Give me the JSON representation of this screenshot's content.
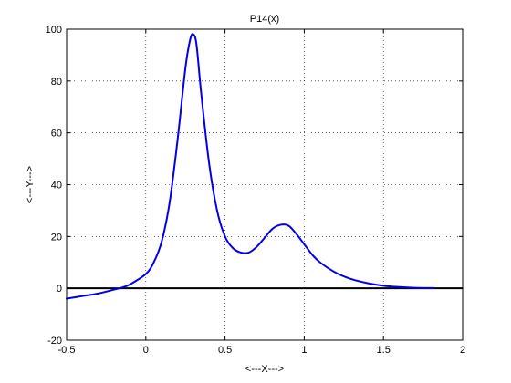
{
  "chart_data": {
    "type": "line",
    "title": "P14(x)",
    "xlabel": "<---X--->",
    "ylabel": "<---Y--->",
    "xlim": [
      -0.5,
      2
    ],
    "ylim": [
      -20,
      100
    ],
    "xticks": [
      "-0.5",
      "0",
      "0.5",
      "1",
      "1.5",
      "2"
    ],
    "yticks": [
      "-20",
      "0",
      "20",
      "40",
      "60",
      "80",
      "100"
    ],
    "grid": true,
    "series": [
      {
        "color": "#0000ee",
        "x": [
          -0.5,
          -0.4,
          -0.3,
          -0.2,
          -0.15,
          -0.1,
          0,
          0.05,
          0.1,
          0.15,
          0.2,
          0.25,
          0.28,
          0.3,
          0.32,
          0.35,
          0.4,
          0.45,
          0.5,
          0.55,
          0.6,
          0.65,
          0.7,
          0.75,
          0.8,
          0.85,
          0.9,
          0.95,
          1.0,
          1.05,
          1.1,
          1.2,
          1.3,
          1.4,
          1.5,
          1.6,
          1.7,
          1.82
        ],
        "y": [
          -4,
          -3,
          -2,
          -0.5,
          0.3,
          1.5,
          5.5,
          10,
          18,
          33,
          57,
          85,
          96,
          98,
          94,
          75,
          48,
          30,
          20,
          15.5,
          13.8,
          13.8,
          16,
          19.5,
          23,
          24.5,
          24.2,
          21,
          17,
          13,
          10,
          6,
          3.5,
          2,
          1,
          0.5,
          0.2,
          0.1
        ]
      }
    ],
    "reference_line": {
      "y": 0,
      "color": "#000000"
    }
  }
}
